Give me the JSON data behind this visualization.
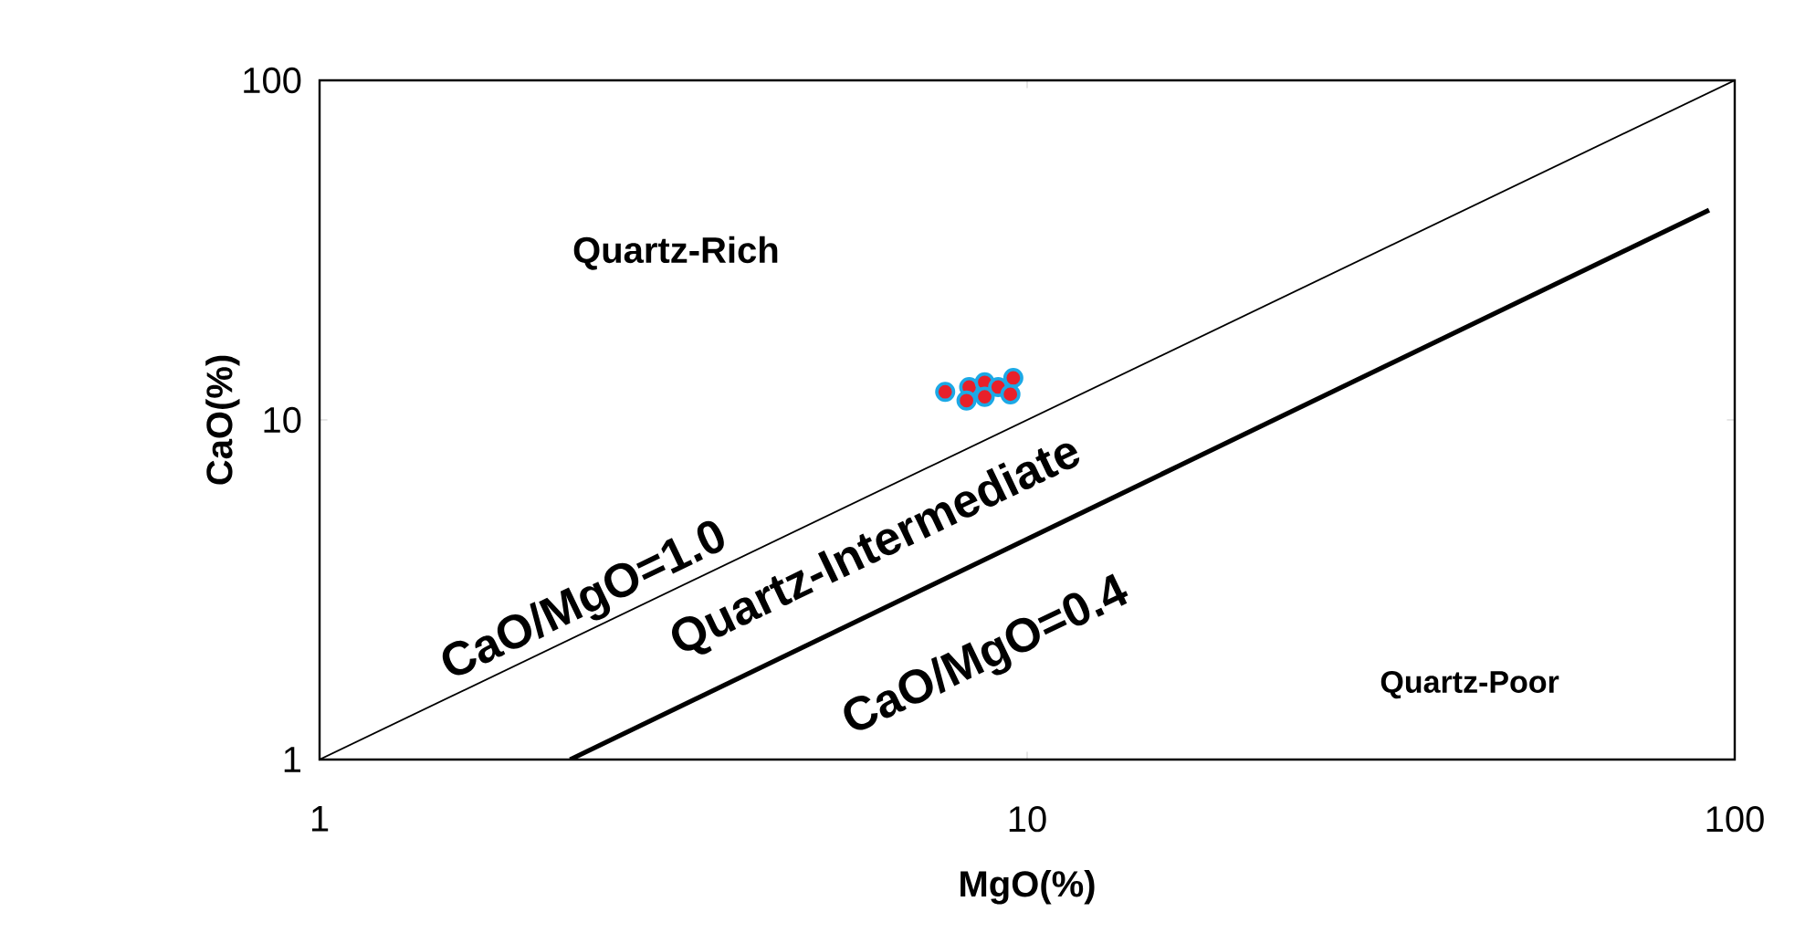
{
  "chart_data": {
    "type": "scatter",
    "xlabel": "MgO(%)",
    "ylabel": "CaO(%)",
    "log": "xy",
    "xlim": [
      1,
      100
    ],
    "ylim": [
      1,
      100
    ],
    "xticks": [
      1,
      10,
      100
    ],
    "yticks": [
      1,
      10,
      100
    ],
    "series": [
      {
        "type": "line",
        "marker": "none",
        "color": "#000000",
        "x": [
          1,
          100
        ],
        "values": [
          1,
          100
        ]
      },
      {
        "type": "line",
        "marker": "none",
        "color": "#000000",
        "x": [
          2.26,
          92
        ],
        "values": [
          1,
          41.5
        ]
      },
      {
        "marker": "circle",
        "color": "#e8202a",
        "x": [
          7.66,
          8.28,
          8.21,
          8.71,
          8.71,
          9.1,
          9.56,
          9.47
        ],
        "values": [
          12.1,
          12.5,
          11.4,
          12.9,
          11.7,
          12.5,
          13.3,
          11.9
        ]
      }
    ],
    "annotations": [
      "Quartz-Rich",
      "CaO/MgO=1.0",
      "Quartz-Intermediate",
      "CaO/MgO=0.4",
      "Quartz-Poor"
    ]
  }
}
